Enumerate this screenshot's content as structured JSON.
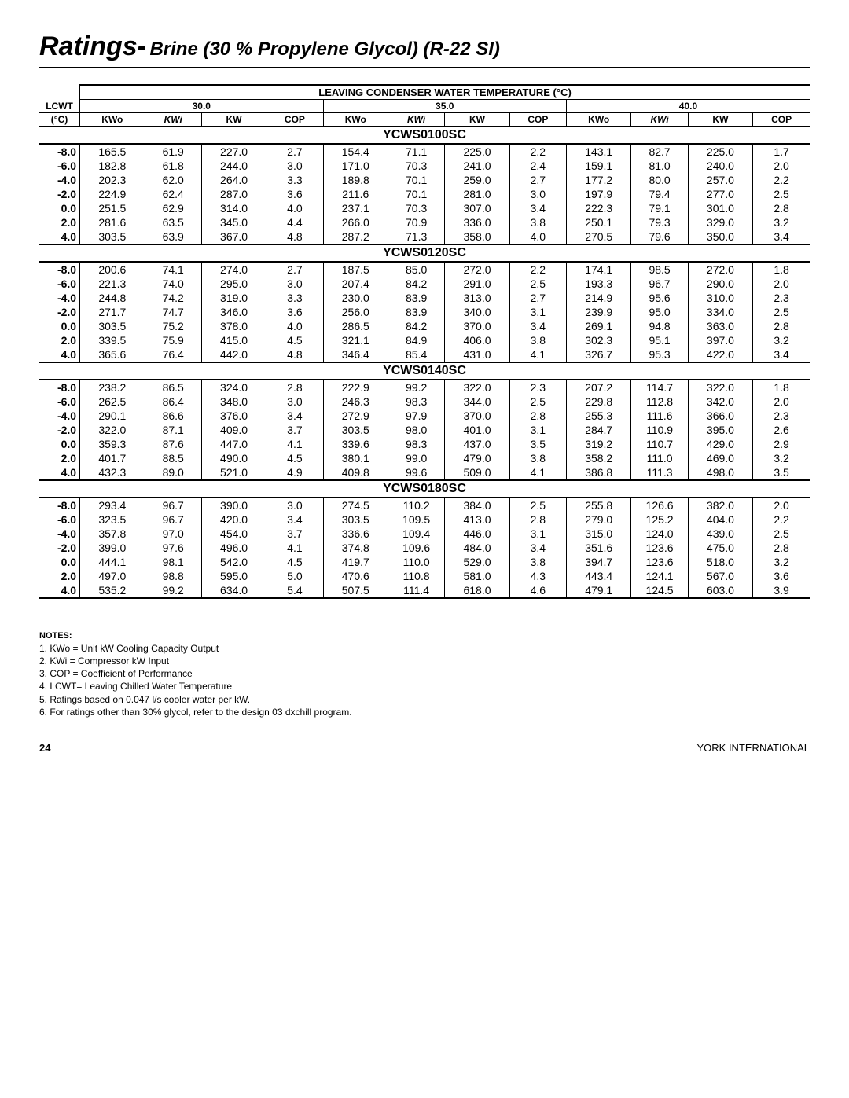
{
  "title_main": "Ratings-",
  "title_sub": "Brine (30 % Propylene Glycol) (R-22 SI)",
  "header_main": "LEAVING CONDENSER WATER TEMPERATURE (°C)",
  "lcwt_label": "LCWT",
  "lcwt_unit": "(°C)",
  "temp_groups": [
    "30.0",
    "35.0",
    "40.0"
  ],
  "sub_headers": [
    "KWo",
    "KWi",
    "KW",
    "COP"
  ],
  "models": [
    {
      "name": "YCWS0100SC",
      "rows": [
        [
          "-8.0",
          "165.5",
          "61.9",
          "227.0",
          "2.7",
          "154.4",
          "71.1",
          "225.0",
          "2.2",
          "143.1",
          "82.7",
          "225.0",
          "1.7"
        ],
        [
          "-6.0",
          "182.8",
          "61.8",
          "244.0",
          "3.0",
          "171.0",
          "70.3",
          "241.0",
          "2.4",
          "159.1",
          "81.0",
          "240.0",
          "2.0"
        ],
        [
          "-4.0",
          "202.3",
          "62.0",
          "264.0",
          "3.3",
          "189.8",
          "70.1",
          "259.0",
          "2.7",
          "177.2",
          "80.0",
          "257.0",
          "2.2"
        ],
        [
          "-2.0",
          "224.9",
          "62.4",
          "287.0",
          "3.6",
          "211.6",
          "70.1",
          "281.0",
          "3.0",
          "197.9",
          "79.4",
          "277.0",
          "2.5"
        ],
        [
          "0.0",
          "251.5",
          "62.9",
          "314.0",
          "4.0",
          "237.1",
          "70.3",
          "307.0",
          "3.4",
          "222.3",
          "79.1",
          "301.0",
          "2.8"
        ],
        [
          "2.0",
          "281.6",
          "63.5",
          "345.0",
          "4.4",
          "266.0",
          "70.9",
          "336.0",
          "3.8",
          "250.1",
          "79.3",
          "329.0",
          "3.2"
        ],
        [
          "4.0",
          "303.5",
          "63.9",
          "367.0",
          "4.8",
          "287.2",
          "71.3",
          "358.0",
          "4.0",
          "270.5",
          "79.6",
          "350.0",
          "3.4"
        ]
      ]
    },
    {
      "name": "YCWS0120SC",
      "rows": [
        [
          "-8.0",
          "200.6",
          "74.1",
          "274.0",
          "2.7",
          "187.5",
          "85.0",
          "272.0",
          "2.2",
          "174.1",
          "98.5",
          "272.0",
          "1.8"
        ],
        [
          "-6.0",
          "221.3",
          "74.0",
          "295.0",
          "3.0",
          "207.4",
          "84.2",
          "291.0",
          "2.5",
          "193.3",
          "96.7",
          "290.0",
          "2.0"
        ],
        [
          "-4.0",
          "244.8",
          "74.2",
          "319.0",
          "3.3",
          "230.0",
          "83.9",
          "313.0",
          "2.7",
          "214.9",
          "95.6",
          "310.0",
          "2.3"
        ],
        [
          "-2.0",
          "271.7",
          "74.7",
          "346.0",
          "3.6",
          "256.0",
          "83.9",
          "340.0",
          "3.1",
          "239.9",
          "95.0",
          "334.0",
          "2.5"
        ],
        [
          "0.0",
          "303.5",
          "75.2",
          "378.0",
          "4.0",
          "286.5",
          "84.2",
          "370.0",
          "3.4",
          "269.1",
          "94.8",
          "363.0",
          "2.8"
        ],
        [
          "2.0",
          "339.5",
          "75.9",
          "415.0",
          "4.5",
          "321.1",
          "84.9",
          "406.0",
          "3.8",
          "302.3",
          "95.1",
          "397.0",
          "3.2"
        ],
        [
          "4.0",
          "365.6",
          "76.4",
          "442.0",
          "4.8",
          "346.4",
          "85.4",
          "431.0",
          "4.1",
          "326.7",
          "95.3",
          "422.0",
          "3.4"
        ]
      ]
    },
    {
      "name": "YCWS0140SC",
      "rows": [
        [
          "-8.0",
          "238.2",
          "86.5",
          "324.0",
          "2.8",
          "222.9",
          "99.2",
          "322.0",
          "2.3",
          "207.2",
          "114.7",
          "322.0",
          "1.8"
        ],
        [
          "-6.0",
          "262.5",
          "86.4",
          "348.0",
          "3.0",
          "246.3",
          "98.3",
          "344.0",
          "2.5",
          "229.8",
          "112.8",
          "342.0",
          "2.0"
        ],
        [
          "-4.0",
          "290.1",
          "86.6",
          "376.0",
          "3.4",
          "272.9",
          "97.9",
          "370.0",
          "2.8",
          "255.3",
          "111.6",
          "366.0",
          "2.3"
        ],
        [
          "-2.0",
          "322.0",
          "87.1",
          "409.0",
          "3.7",
          "303.5",
          "98.0",
          "401.0",
          "3.1",
          "284.7",
          "110.9",
          "395.0",
          "2.6"
        ],
        [
          "0.0",
          "359.3",
          "87.6",
          "447.0",
          "4.1",
          "339.6",
          "98.3",
          "437.0",
          "3.5",
          "319.2",
          "110.7",
          "429.0",
          "2.9"
        ],
        [
          "2.0",
          "401.7",
          "88.5",
          "490.0",
          "4.5",
          "380.1",
          "99.0",
          "479.0",
          "3.8",
          "358.2",
          "111.0",
          "469.0",
          "3.2"
        ],
        [
          "4.0",
          "432.3",
          "89.0",
          "521.0",
          "4.9",
          "409.8",
          "99.6",
          "509.0",
          "4.1",
          "386.8",
          "111.3",
          "498.0",
          "3.5"
        ]
      ]
    },
    {
      "name": "YCWS0180SC",
      "rows": [
        [
          "-8.0",
          "293.4",
          "96.7",
          "390.0",
          "3.0",
          "274.5",
          "110.2",
          "384.0",
          "2.5",
          "255.8",
          "126.6",
          "382.0",
          "2.0"
        ],
        [
          "-6.0",
          "323.5",
          "96.7",
          "420.0",
          "3.4",
          "303.5",
          "109.5",
          "413.0",
          "2.8",
          "279.0",
          "125.2",
          "404.0",
          "2.2"
        ],
        [
          "-4.0",
          "357.8",
          "97.0",
          "454.0",
          "3.7",
          "336.6",
          "109.4",
          "446.0",
          "3.1",
          "315.0",
          "124.0",
          "439.0",
          "2.5"
        ],
        [
          "-2.0",
          "399.0",
          "97.6",
          "496.0",
          "4.1",
          "374.8",
          "109.6",
          "484.0",
          "3.4",
          "351.6",
          "123.6",
          "475.0",
          "2.8"
        ],
        [
          "0.0",
          "444.1",
          "98.1",
          "542.0",
          "4.5",
          "419.7",
          "110.0",
          "529.0",
          "3.8",
          "394.7",
          "123.6",
          "518.0",
          "3.2"
        ],
        [
          "2.0",
          "497.0",
          "98.8",
          "595.0",
          "5.0",
          "470.6",
          "110.8",
          "581.0",
          "4.3",
          "443.4",
          "124.1",
          "567.0",
          "3.6"
        ],
        [
          "4.0",
          "535.2",
          "99.2",
          "634.0",
          "5.4",
          "507.5",
          "111.4",
          "618.0",
          "4.6",
          "479.1",
          "124.5",
          "603.0",
          "3.9"
        ]
      ]
    }
  ],
  "notes_title": "NOTES:",
  "notes": [
    "1. KWo = Unit kW Cooling Capacity Output",
    "2. KWi = Compressor kW Input",
    "3. COP = Coefficient of Performance",
    "4. LCWT= Leaving Chilled Water Temperature",
    "5. Ratings based on 0.047 l/s cooler water per kW.",
    "6. For ratings other than 30% glycol, refer to the design 03 dxchill program."
  ],
  "page_number": "24",
  "footer_right": "YORK INTERNATIONAL"
}
